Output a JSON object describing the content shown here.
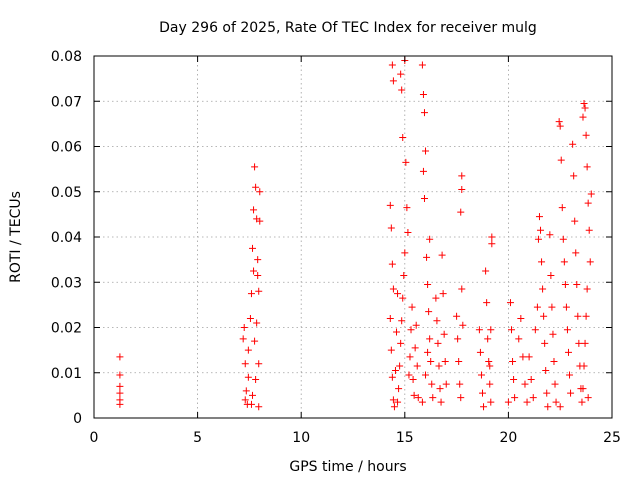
{
  "chart_data": {
    "type": "scatter",
    "title": "Day 296 of 2025, Rate Of TEC Index for receiver mulg",
    "xlabel": "GPS time / hours",
    "ylabel": "ROTI / TECUs",
    "xlim": [
      0,
      25
    ],
    "ylim": [
      0,
      0.08
    ],
    "xticks": [
      0,
      5,
      10,
      15,
      20,
      25
    ],
    "xtick_labels": [
      "0",
      "5",
      "10",
      "15",
      "20",
      "25"
    ],
    "yticks": [
      0,
      0.01,
      0.02,
      0.03,
      0.04,
      0.05,
      0.06,
      0.07,
      0.08
    ],
    "ytick_labels": [
      "0",
      "0.01",
      "0.02",
      "0.03",
      "0.04",
      "0.05",
      "0.06",
      "0.07",
      "0.08"
    ],
    "grid": true,
    "marker": "+",
    "color": "#ff0000",
    "series": [
      {
        "points": [
          [
            1.25,
            0.0135
          ],
          [
            1.25,
            0.0095
          ],
          [
            1.25,
            0.007
          ],
          [
            1.25,
            0.0055
          ],
          [
            1.25,
            0.004
          ],
          [
            1.25,
            0.003
          ],
          [
            7.2,
            0.0175
          ],
          [
            7.25,
            0.02
          ],
          [
            7.3,
            0.012
          ],
          [
            7.35,
            0.006
          ],
          [
            7.4,
            0.003
          ],
          [
            7.45,
            0.009
          ],
          [
            7.3,
            0.004
          ],
          [
            7.45,
            0.015
          ],
          [
            7.55,
            0.022
          ],
          [
            7.6,
            0.0275
          ],
          [
            7.65,
            0.0375
          ],
          [
            7.7,
            0.046
          ],
          [
            7.75,
            0.0555
          ],
          [
            7.8,
            0.051
          ],
          [
            7.85,
            0.044
          ],
          [
            7.9,
            0.035
          ],
          [
            7.95,
            0.028
          ],
          [
            8.0,
            0.05
          ],
          [
            7.85,
            0.021
          ],
          [
            7.75,
            0.017
          ],
          [
            7.95,
            0.012
          ],
          [
            7.6,
            0.003
          ],
          [
            8.0,
            0.0435
          ],
          [
            7.9,
            0.0315
          ],
          [
            7.7,
            0.0325
          ],
          [
            7.8,
            0.0085
          ],
          [
            7.65,
            0.005
          ],
          [
            7.95,
            0.0025
          ],
          [
            14.3,
            0.047
          ],
          [
            14.35,
            0.042
          ],
          [
            14.4,
            0.034
          ],
          [
            14.45,
            0.0285
          ],
          [
            14.3,
            0.022
          ],
          [
            14.35,
            0.015
          ],
          [
            14.4,
            0.009
          ],
          [
            14.45,
            0.004
          ],
          [
            14.5,
            0.0025
          ],
          [
            14.55,
            0.0105
          ],
          [
            14.6,
            0.019
          ],
          [
            14.65,
            0.0275
          ],
          [
            14.4,
            0.078
          ],
          [
            14.45,
            0.0745
          ],
          [
            14.8,
            0.076
          ],
          [
            14.85,
            0.0725
          ],
          [
            14.9,
            0.062
          ],
          [
            15.0,
            0.079
          ],
          [
            15.05,
            0.0565
          ],
          [
            15.1,
            0.0465
          ],
          [
            15.15,
            0.041
          ],
          [
            15.0,
            0.0365
          ],
          [
            14.95,
            0.0315
          ],
          [
            14.9,
            0.0265
          ],
          [
            14.85,
            0.0215
          ],
          [
            14.8,
            0.0165
          ],
          [
            14.75,
            0.0115
          ],
          [
            14.7,
            0.0065
          ],
          [
            14.65,
            0.0035
          ],
          [
            15.2,
            0.0095
          ],
          [
            15.25,
            0.0135
          ],
          [
            15.3,
            0.0195
          ],
          [
            15.35,
            0.0245
          ],
          [
            15.4,
            0.0085
          ],
          [
            15.45,
            0.005
          ],
          [
            15.5,
            0.0155
          ],
          [
            15.55,
            0.0205
          ],
          [
            15.6,
            0.0115
          ],
          [
            15.65,
            0.0045
          ],
          [
            15.85,
            0.078
          ],
          [
            15.9,
            0.0715
          ],
          [
            15.95,
            0.0675
          ],
          [
            16.0,
            0.059
          ],
          [
            15.9,
            0.0545
          ],
          [
            15.95,
            0.0485
          ],
          [
            16.05,
            0.0355
          ],
          [
            16.1,
            0.0295
          ],
          [
            16.15,
            0.0235
          ],
          [
            16.2,
            0.0175
          ],
          [
            16.25,
            0.0125
          ],
          [
            16.3,
            0.0075
          ],
          [
            16.35,
            0.0045
          ],
          [
            16.2,
            0.0395
          ],
          [
            16.1,
            0.0145
          ],
          [
            16.0,
            0.0095
          ],
          [
            15.85,
            0.0035
          ],
          [
            16.5,
            0.0265
          ],
          [
            16.55,
            0.0215
          ],
          [
            16.6,
            0.0165
          ],
          [
            16.65,
            0.0115
          ],
          [
            16.7,
            0.0065
          ],
          [
            16.75,
            0.0035
          ],
          [
            16.8,
            0.036
          ],
          [
            16.85,
            0.0275
          ],
          [
            16.9,
            0.0185
          ],
          [
            16.95,
            0.0125
          ],
          [
            17.0,
            0.0075
          ],
          [
            17.5,
            0.0225
          ],
          [
            17.55,
            0.0175
          ],
          [
            17.6,
            0.0125
          ],
          [
            17.65,
            0.0075
          ],
          [
            17.7,
            0.0045
          ],
          [
            17.75,
            0.0535
          ],
          [
            17.75,
            0.0505
          ],
          [
            17.7,
            0.0455
          ],
          [
            17.75,
            0.0285
          ],
          [
            17.8,
            0.0205
          ],
          [
            18.6,
            0.0195
          ],
          [
            18.65,
            0.0145
          ],
          [
            18.7,
            0.0095
          ],
          [
            18.75,
            0.0055
          ],
          [
            18.8,
            0.0025
          ],
          [
            18.9,
            0.0325
          ],
          [
            18.95,
            0.0255
          ],
          [
            19.0,
            0.0175
          ],
          [
            19.05,
            0.0125
          ],
          [
            19.1,
            0.0075
          ],
          [
            19.15,
            0.0035
          ],
          [
            19.2,
            0.04
          ],
          [
            19.2,
            0.0385
          ],
          [
            19.15,
            0.0195
          ],
          [
            19.1,
            0.0115
          ],
          [
            20.1,
            0.0255
          ],
          [
            20.15,
            0.0195
          ],
          [
            20.2,
            0.0125
          ],
          [
            20.25,
            0.0085
          ],
          [
            20.3,
            0.0045
          ],
          [
            20.0,
            0.0035
          ],
          [
            20.5,
            0.0175
          ],
          [
            20.6,
            0.022
          ],
          [
            20.7,
            0.0135
          ],
          [
            20.8,
            0.0075
          ],
          [
            20.9,
            0.0035
          ],
          [
            21.0,
            0.0135
          ],
          [
            21.1,
            0.0085
          ],
          [
            21.2,
            0.0045
          ],
          [
            21.3,
            0.0195
          ],
          [
            21.4,
            0.0245
          ],
          [
            21.45,
            0.0395
          ],
          [
            21.5,
            0.0445
          ],
          [
            21.55,
            0.0415
          ],
          [
            21.6,
            0.0345
          ],
          [
            21.65,
            0.0285
          ],
          [
            21.7,
            0.0225
          ],
          [
            21.75,
            0.0165
          ],
          [
            21.8,
            0.0105
          ],
          [
            21.85,
            0.0055
          ],
          [
            21.9,
            0.0025
          ],
          [
            22.0,
            0.0405
          ],
          [
            22.05,
            0.0315
          ],
          [
            22.1,
            0.0245
          ],
          [
            22.15,
            0.0185
          ],
          [
            22.2,
            0.0125
          ],
          [
            22.25,
            0.0075
          ],
          [
            22.3,
            0.0035
          ],
          [
            22.45,
            0.0655
          ],
          [
            22.5,
            0.0645
          ],
          [
            22.55,
            0.057
          ],
          [
            22.6,
            0.0465
          ],
          [
            22.65,
            0.0395
          ],
          [
            22.7,
            0.0345
          ],
          [
            22.75,
            0.0295
          ],
          [
            22.8,
            0.0245
          ],
          [
            22.85,
            0.0195
          ],
          [
            22.9,
            0.0145
          ],
          [
            22.95,
            0.0095
          ],
          [
            23.0,
            0.0055
          ],
          [
            22.5,
            0.0025
          ],
          [
            23.1,
            0.0605
          ],
          [
            23.15,
            0.0535
          ],
          [
            23.2,
            0.0435
          ],
          [
            23.25,
            0.0365
          ],
          [
            23.3,
            0.0295
          ],
          [
            23.35,
            0.0225
          ],
          [
            23.4,
            0.0165
          ],
          [
            23.45,
            0.0115
          ],
          [
            23.5,
            0.0065
          ],
          [
            23.55,
            0.0035
          ],
          [
            23.6,
            0.0665
          ],
          [
            23.65,
            0.0695
          ],
          [
            23.7,
            0.0685
          ],
          [
            23.75,
            0.0625
          ],
          [
            23.8,
            0.0555
          ],
          [
            23.85,
            0.0475
          ],
          [
            23.9,
            0.0415
          ],
          [
            23.95,
            0.0345
          ],
          [
            23.8,
            0.0285
          ],
          [
            23.75,
            0.0225
          ],
          [
            23.7,
            0.0165
          ],
          [
            23.65,
            0.0115
          ],
          [
            23.6,
            0.0065
          ],
          [
            23.85,
            0.0045
          ],
          [
            24.0,
            0.0495
          ]
        ]
      }
    ]
  }
}
